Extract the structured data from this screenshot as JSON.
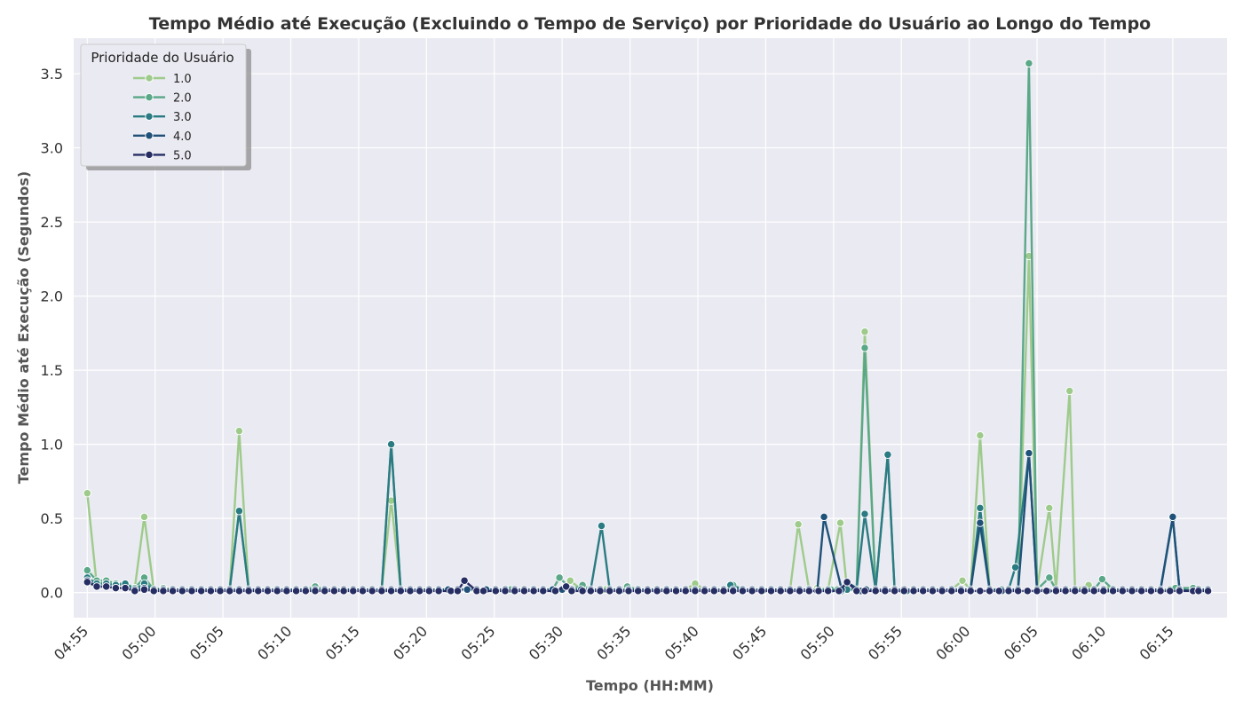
{
  "chart_data": {
    "type": "line",
    "title": "Tempo Médio até Execução (Excluindo o Tempo de Serviço) por Prioridade do Usuário ao Longo do Tempo",
    "xlabel": "Tempo (HH:MM)",
    "ylabel": "Tempo Médio até Execução (Segundos)",
    "x_ticks": [
      "04:55",
      "05:00",
      "05:05",
      "05:10",
      "05:15",
      "05:20",
      "05:25",
      "05:30",
      "05:35",
      "05:40",
      "05:45",
      "05:50",
      "05:55",
      "06:00",
      "06:05",
      "06:10",
      "06:15"
    ],
    "y_ticks": [
      "0.0",
      "0.5",
      "1.0",
      "1.5",
      "2.0",
      "2.5",
      "3.0",
      "3.5"
    ],
    "xlim": [
      294,
      379
    ],
    "ylim": [
      -0.17,
      3.74
    ],
    "x_unit": "minutes",
    "grid": true,
    "legend": {
      "title": "Prioridade do Usuário",
      "placement": "top-left"
    },
    "x": [
      295,
      295.7,
      296.4,
      297.1,
      297.8,
      298.5,
      299.2,
      299.9,
      300.6,
      301.3,
      302,
      302.7,
      303.4,
      304.1,
      304.8,
      305.5,
      306.2,
      306.9,
      307.6,
      308.3,
      309,
      309.7,
      310.4,
      311.1,
      311.8,
      312.5,
      313.2,
      313.9,
      314.6,
      315.3,
      316,
      316.7,
      317.4,
      318.1,
      318.8,
      319.5,
      320.2,
      320.9,
      321.6,
      322.3,
      323,
      323.7,
      324.4,
      325.1,
      325.8,
      326.5,
      327.2,
      327.9,
      328.6,
      329.3,
      330,
      330.7,
      331.4,
      332.1,
      332.8,
      333.5,
      334.2,
      334.9,
      335.6,
      336.3,
      337,
      337.7,
      338.4,
      339.1,
      339.8,
      340.5,
      341.2,
      341.9,
      342.6,
      343.3,
      344,
      344.7,
      345.4,
      346.1,
      346.8,
      347.5,
      348.2,
      348.9,
      349.6,
      350.3,
      351,
      351.7,
      352.4,
      353.1,
      353.8,
      354.5,
      355.2,
      355.9,
      356.6,
      357.3,
      358,
      358.7,
      359.4,
      360.1,
      360.8,
      361.5,
      362.2,
      362.9,
      363.6,
      364.3,
      365,
      365.7,
      366.4,
      367.1,
      367.8,
      368.5,
      369.2,
      369.9,
      370.6,
      371.3,
      372,
      372.7,
      373.4,
      374.1,
      374.8,
      375.5,
      376.2,
      376.9,
      377.6
    ],
    "series": [
      {
        "name": "1.0",
        "color": "#9ecb8b",
        "values": [
          0.67,
          0.05,
          0.05,
          0.05,
          0.51,
          0.03,
          0.03,
          0.02,
          0.02,
          0.02,
          0.02,
          0.02,
          0.02,
          0.02,
          0.02,
          0.02,
          0.02,
          0.02,
          0.02,
          0.02,
          0.02,
          0.02,
          0.02,
          0.02,
          0.02,
          0.02,
          0.02,
          0.02,
          0.02,
          0.02,
          0.02,
          0.02,
          0.02,
          0.02,
          0.02,
          0.02,
          0.02,
          0.02,
          0.02,
          0.02,
          0.02,
          0.02,
          0.02,
          0.02,
          0.02,
          0.02,
          0.02,
          0.02,
          0.02,
          0.02,
          0.02,
          0.02,
          0.02,
          0.02,
          0.02,
          0.02,
          0.02,
          0.02,
          0.02,
          0.02,
          0.02,
          0.02,
          0.02,
          0.02,
          0.02,
          0.02,
          0.02,
          0.02,
          0.02,
          0.02,
          0.02,
          0.02,
          0.02,
          0.02,
          0.02,
          0.02,
          0.02,
          0.02,
          0.02,
          0.02,
          0.02,
          0.02,
          0.02,
          0.02,
          0.02,
          0.02,
          0.02,
          0.02,
          0.02,
          0.02,
          0.02,
          0.02,
          0.02,
          0.02,
          0.02,
          0.02,
          0.02,
          0.02,
          0.02,
          0.02,
          0.02,
          0.02,
          0.02,
          0.02,
          0.02,
          0.02,
          0.02,
          0.02,
          0.02,
          0.02,
          0.02,
          0.02,
          0.02,
          0.02,
          0.02,
          0.02,
          0.02,
          0.02,
          0.02
        ]
      },
      {
        "name": "2.0",
        "color": "#5aa888",
        "values": [
          0.15,
          0.08,
          0.06,
          0.06,
          0.1,
          0.03,
          0.03,
          0.02,
          0.02,
          0.02,
          0.02,
          0.02,
          0.02,
          0.02,
          0.02,
          0.02,
          0.02,
          0.02,
          0.02,
          0.02,
          0.02,
          0.02,
          0.02,
          0.02,
          0.02,
          0.02,
          0.02,
          0.02,
          0.02,
          0.02,
          0.02,
          0.02,
          0.02,
          0.02,
          0.02,
          0.02,
          0.02,
          0.02,
          0.02,
          0.02,
          0.02,
          0.02,
          0.02,
          0.02,
          0.02,
          0.02,
          0.02,
          0.02,
          0.02,
          0.02,
          0.02,
          0.02,
          0.02,
          0.02,
          0.02,
          0.02,
          0.02,
          0.02,
          0.02,
          0.02,
          0.02,
          0.02,
          0.02,
          0.02,
          0.02,
          0.02,
          0.02,
          0.02,
          0.02,
          0.02,
          0.02,
          0.02,
          0.02,
          0.02,
          0.02,
          0.02,
          0.02,
          0.02,
          0.02,
          0.02,
          0.02,
          0.02,
          0.02,
          0.02,
          0.02,
          0.02,
          0.02,
          0.02,
          0.02,
          0.02,
          0.02,
          0.02,
          0.02,
          0.02,
          0.02,
          0.02,
          0.02,
          0.02,
          0.02,
          0.02,
          0.02,
          0.02,
          0.02,
          0.02,
          0.02,
          0.02,
          0.02,
          0.02,
          0.02,
          0.02,
          0.02,
          0.02,
          0.02,
          0.02,
          0.02,
          0.02,
          0.02,
          0.02,
          0.02
        ]
      },
      {
        "name": "3.0",
        "color": "#2a7b82",
        "values": [
          0.1,
          0.06,
          0.05,
          0.05,
          0.06,
          0.02,
          0.02,
          0.02,
          0.02,
          0.02,
          0.02,
          0.02,
          0.02,
          0.02,
          0.02,
          0.02,
          0.02,
          0.02,
          0.02,
          0.02,
          0.02,
          0.02,
          0.02,
          0.02,
          0.02,
          0.02,
          0.02,
          0.02,
          0.02,
          0.02,
          0.02,
          0.02,
          0.02,
          0.02,
          0.02,
          0.02,
          0.02,
          0.02,
          0.02,
          0.02,
          0.02,
          0.02,
          0.02,
          0.02,
          0.02,
          0.02,
          0.02,
          0.02,
          0.02,
          0.02,
          0.02,
          0.02,
          0.02,
          0.02,
          0.02,
          0.02,
          0.02,
          0.02,
          0.02,
          0.02,
          0.02,
          0.02,
          0.02,
          0.02,
          0.02,
          0.02,
          0.02,
          0.02,
          0.02,
          0.02,
          0.02,
          0.02,
          0.02,
          0.02,
          0.02,
          0.02,
          0.02,
          0.02,
          0.02,
          0.02,
          0.02,
          0.02,
          0.02,
          0.02,
          0.02,
          0.02,
          0.02,
          0.02,
          0.02,
          0.02,
          0.02,
          0.02,
          0.02,
          0.02,
          0.02,
          0.02,
          0.02,
          0.02,
          0.02,
          0.02,
          0.02,
          0.02,
          0.02,
          0.02,
          0.02,
          0.02,
          0.02,
          0.02,
          0.02,
          0.02,
          0.02,
          0.02,
          0.02,
          0.02,
          0.02,
          0.02,
          0.02,
          0.02,
          0.02
        ]
      },
      {
        "name": "4.0",
        "color": "#1f5179",
        "values": [
          0.08,
          0.04,
          0.03,
          0.03,
          0.03,
          0.02,
          0.02,
          0.02,
          0.02,
          0.02,
          0.02,
          0.02,
          0.02,
          0.02,
          0.02,
          0.02,
          0.02,
          0.02,
          0.02,
          0.02,
          0.02,
          0.02,
          0.02,
          0.02,
          0.02,
          0.02,
          0.02,
          0.02,
          0.02,
          0.02,
          0.02,
          0.02,
          0.02,
          0.02,
          0.02,
          0.02,
          0.02,
          0.02,
          0.02,
          0.02,
          0.02,
          0.02,
          0.02,
          0.02,
          0.02,
          0.02,
          0.02,
          0.02,
          0.02,
          0.02,
          0.02,
          0.02,
          0.02,
          0.02,
          0.02,
          0.02,
          0.02,
          0.02,
          0.02,
          0.02,
          0.02,
          0.02,
          0.02,
          0.02,
          0.02,
          0.02,
          0.02,
          0.02,
          0.02,
          0.02,
          0.02,
          0.02,
          0.02,
          0.02,
          0.02,
          0.02,
          0.02,
          0.02,
          0.02,
          0.02,
          0.02,
          0.02,
          0.02,
          0.02,
          0.02,
          0.02,
          0.02,
          0.02,
          0.02,
          0.02,
          0.02,
          0.02,
          0.02,
          0.02,
          0.02,
          0.02,
          0.02,
          0.02,
          0.02,
          0.02,
          0.02,
          0.02,
          0.02,
          0.02,
          0.02,
          0.02,
          0.02,
          0.02,
          0.02,
          0.02,
          0.02,
          0.02,
          0.02,
          0.02,
          0.02,
          0.02,
          0.02,
          0.02,
          0.02
        ]
      },
      {
        "name": "5.0",
        "color": "#252d63",
        "values": [
          0.07,
          0.04,
          0.03,
          0.03,
          0.02,
          0.01,
          0.01,
          0.01,
          0.01,
          0.01,
          0.01,
          0.01,
          0.01,
          0.01,
          0.01,
          0.01,
          0.01,
          0.01,
          0.01,
          0.01,
          0.01,
          0.01,
          0.01,
          0.01,
          0.01,
          0.01,
          0.01,
          0.01,
          0.01,
          0.01,
          0.01,
          0.01,
          0.01,
          0.01,
          0.01,
          0.01,
          0.01,
          0.01,
          0.01,
          0.01,
          0.01,
          0.01,
          0.01,
          0.01,
          0.01,
          0.01,
          0.01,
          0.01,
          0.01,
          0.01,
          0.01,
          0.01,
          0.01,
          0.01,
          0.01,
          0.01,
          0.01,
          0.01,
          0.01,
          0.01,
          0.01,
          0.01,
          0.01,
          0.01,
          0.01,
          0.01,
          0.01,
          0.01,
          0.01,
          0.01,
          0.01,
          0.01,
          0.01,
          0.01,
          0.01,
          0.01,
          0.01,
          0.01,
          0.01,
          0.01,
          0.01,
          0.01,
          0.01,
          0.01,
          0.01,
          0.01,
          0.01,
          0.01,
          0.01,
          0.01,
          0.01,
          0.01,
          0.01,
          0.01,
          0.01,
          0.01,
          0.01,
          0.01,
          0.01,
          0.01,
          0.01,
          0.01,
          0.01,
          0.01,
          0.01,
          0.01,
          0.01,
          0.01,
          0.01,
          0.01,
          0.01,
          0.01,
          0.01,
          0.01,
          0.01,
          0.01,
          0.01,
          0.01,
          0.01
        ]
      }
    ],
    "points": {
      "1.0": [
        [
          295,
          0.67
        ],
        [
          296.4,
          0.08
        ],
        [
          297.8,
          0.06
        ],
        [
          299.2,
          0.51
        ],
        [
          300.6,
          0.03
        ],
        [
          303.4,
          0.02
        ],
        [
          306.2,
          1.09
        ],
        [
          307.6,
          0.02
        ],
        [
          314.6,
          0.02
        ],
        [
          317.4,
          0.62
        ],
        [
          318.8,
          0.01
        ],
        [
          326.2,
          0.02
        ],
        [
          330.6,
          0.08
        ],
        [
          333.2,
          0.02
        ],
        [
          339.8,
          0.06
        ],
        [
          342.6,
          0.02
        ],
        [
          347.4,
          0.46
        ],
        [
          348.8,
          0.03
        ],
        [
          350.5,
          0.47
        ],
        [
          352.3,
          1.76
        ],
        [
          354.4,
          0.02
        ],
        [
          359.5,
          0.08
        ],
        [
          360.8,
          1.06
        ],
        [
          362.4,
          0.02
        ],
        [
          364.4,
          2.27
        ],
        [
          365.9,
          0.57
        ],
        [
          367.4,
          1.36
        ],
        [
          368.8,
          0.05
        ],
        [
          370.2,
          0.02
        ],
        [
          376.5,
          0.02
        ]
      ],
      "2.0": [
        [
          295,
          0.15
        ],
        [
          296.4,
          0.08
        ],
        [
          297.8,
          0.06
        ],
        [
          299.2,
          0.1
        ],
        [
          300.6,
          0.03
        ],
        [
          306.2,
          0.55
        ],
        [
          311.8,
          0.04
        ],
        [
          317.4,
          1.0
        ],
        [
          326.2,
          0.02
        ],
        [
          329.8,
          0.1
        ],
        [
          331.5,
          0.05
        ],
        [
          334.8,
          0.04
        ],
        [
          342.6,
          0.05
        ],
        [
          344.8,
          0.01
        ],
        [
          349.8,
          0.02
        ],
        [
          352.3,
          1.65
        ],
        [
          354.0,
          0.93
        ],
        [
          355.1,
          0.01
        ],
        [
          360.8,
          0.45
        ],
        [
          362.4,
          0.01
        ],
        [
          364.4,
          3.57
        ],
        [
          365.9,
          0.1
        ],
        [
          369.8,
          0.09
        ],
        [
          375.2,
          0.03
        ],
        [
          376.5,
          0.03
        ]
      ],
      "3.0": [
        [
          295,
          0.1
        ],
        [
          296.4,
          0.06
        ],
        [
          299.2,
          0.06
        ],
        [
          300.6,
          0.02
        ],
        [
          306.2,
          0.55
        ],
        [
          307.6,
          0.02
        ],
        [
          317.4,
          1.0
        ],
        [
          318.8,
          0.01
        ],
        [
          332.9,
          0.45
        ],
        [
          334.3,
          0.01
        ],
        [
          342.4,
          0.05
        ],
        [
          350.6,
          0.01
        ],
        [
          352.3,
          0.53
        ],
        [
          354.0,
          0.93
        ],
        [
          355.4,
          0.01
        ],
        [
          360.8,
          0.57
        ],
        [
          362.4,
          0.02
        ],
        [
          363.4,
          0.17
        ],
        [
          364.4,
          0.94
        ],
        [
          365.8,
          0.01
        ],
        [
          375.0,
          0.5
        ],
        [
          376.5,
          0.01
        ]
      ],
      "4.0": [
        [
          295,
          0.08
        ],
        [
          296.4,
          0.04
        ],
        [
          299.2,
          0.03
        ],
        [
          300.6,
          0.02
        ],
        [
          348.8,
          0.01
        ],
        [
          349.3,
          0.51
        ],
        [
          350.6,
          0.02
        ],
        [
          351.0,
          0.07
        ],
        [
          352.0,
          0.01
        ],
        [
          360.8,
          0.47
        ],
        [
          362.4,
          0.01
        ],
        [
          364.4,
          0.94
        ],
        [
          365.8,
          0.01
        ],
        [
          375.0,
          0.51
        ],
        [
          376.5,
          0.01
        ]
      ],
      "5.0": [
        [
          295,
          0.07
        ],
        [
          296.4,
          0.04
        ],
        [
          297.8,
          0.03
        ],
        [
          299.2,
          0.02
        ],
        [
          300.6,
          0.01
        ],
        [
          321.8,
          0.01
        ],
        [
          322.8,
          0.08
        ],
        [
          324.2,
          0.01
        ],
        [
          329.5,
          0.01
        ],
        [
          330.3,
          0.04
        ],
        [
          331.5,
          0.01
        ],
        [
          350.4,
          0.01
        ],
        [
          351.0,
          0.07
        ],
        [
          352.3,
          0.01
        ],
        [
          376.5,
          0.01
        ]
      ]
    }
  }
}
